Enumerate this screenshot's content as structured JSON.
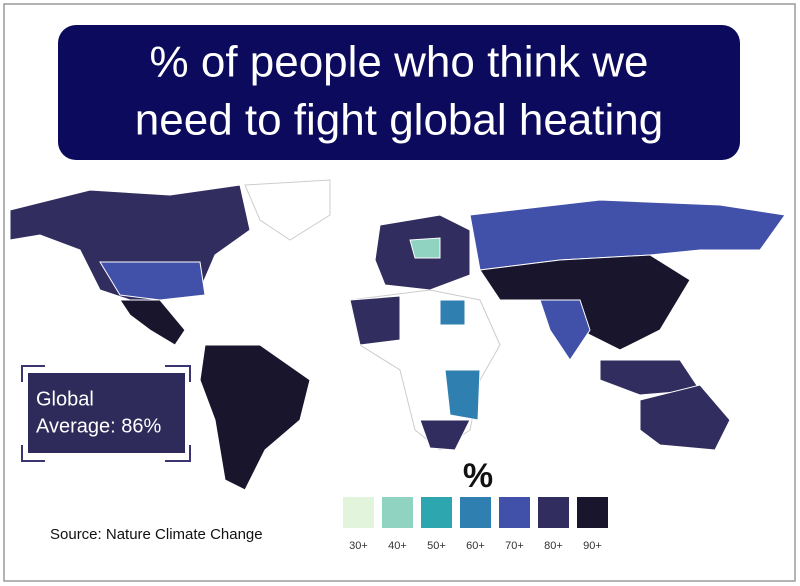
{
  "title_lines": [
    "% of people who think we",
    "need to fight global heating"
  ],
  "callout_lines": [
    "Global",
    "Average: 86%"
  ],
  "source": "Source: Nature Climate Change",
  "legend": {
    "title": "%",
    "items": [
      {
        "label": "30+",
        "color": "#e3f4dc"
      },
      {
        "label": "40+",
        "color": "#8fd3c0"
      },
      {
        "label": "50+",
        "color": "#2ea6b0"
      },
      {
        "label": "60+",
        "color": "#2f7fb0"
      },
      {
        "label": "70+",
        "color": "#4150a8"
      },
      {
        "label": "80+",
        "color": "#312d5e"
      },
      {
        "label": "90+",
        "color": "#18152c"
      }
    ]
  }
}
